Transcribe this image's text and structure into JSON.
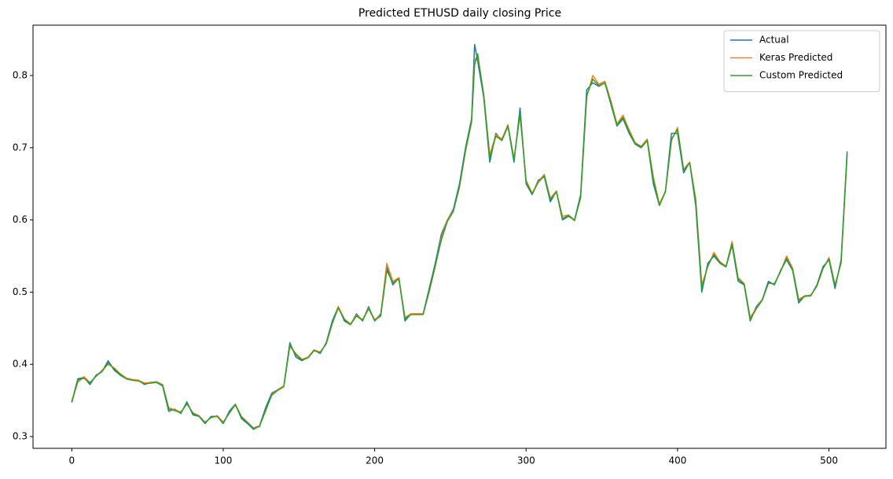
{
  "chart_data": {
    "type": "line",
    "title": "Predicted ETHUSD daily closing Price",
    "x": [
      0,
      4,
      8,
      12,
      16,
      20,
      24,
      28,
      32,
      36,
      40,
      44,
      48,
      52,
      56,
      60,
      64,
      68,
      72,
      76,
      80,
      84,
      88,
      92,
      96,
      100,
      104,
      108,
      112,
      116,
      120,
      124,
      128,
      132,
      136,
      140,
      144,
      148,
      152,
      156,
      160,
      164,
      168,
      172,
      176,
      180,
      184,
      188,
      192,
      196,
      200,
      204,
      208,
      212,
      216,
      220,
      224,
      228,
      232,
      236,
      240,
      244,
      248,
      252,
      256,
      260,
      264,
      266,
      268,
      272,
      276,
      280,
      284,
      288,
      292,
      296,
      300,
      304,
      308,
      312,
      316,
      320,
      324,
      328,
      332,
      336,
      340,
      344,
      348,
      352,
      356,
      360,
      364,
      368,
      372,
      376,
      380,
      384,
      388,
      392,
      396,
      400,
      404,
      408,
      412,
      416,
      420,
      424,
      428,
      432,
      436,
      440,
      444,
      448,
      452,
      456,
      460,
      464,
      468,
      472,
      476,
      480,
      484,
      488,
      492,
      496,
      500,
      504,
      508,
      512
    ],
    "series": [
      {
        "name": "Actual",
        "color": "#1f77b4",
        "values": [
          0.348,
          0.38,
          0.382,
          0.372,
          0.385,
          0.39,
          0.405,
          0.392,
          0.385,
          0.38,
          0.378,
          0.378,
          0.372,
          0.375,
          0.375,
          0.37,
          0.335,
          0.338,
          0.332,
          0.348,
          0.33,
          0.328,
          0.318,
          0.328,
          0.328,
          0.318,
          0.335,
          0.345,
          0.325,
          0.318,
          0.31,
          0.315,
          0.34,
          0.36,
          0.365,
          0.37,
          0.43,
          0.41,
          0.405,
          0.41,
          0.42,
          0.415,
          0.43,
          0.46,
          0.48,
          0.46,
          0.455,
          0.47,
          0.46,
          0.48,
          0.46,
          0.47,
          0.535,
          0.51,
          0.52,
          0.46,
          0.47,
          0.47,
          0.47,
          0.505,
          0.54,
          0.58,
          0.6,
          0.615,
          0.65,
          0.7,
          0.74,
          0.843,
          0.82,
          0.77,
          0.68,
          0.72,
          0.71,
          0.73,
          0.68,
          0.755,
          0.65,
          0.635,
          0.655,
          0.66,
          0.625,
          0.64,
          0.6,
          0.605,
          0.6,
          0.635,
          0.78,
          0.79,
          0.785,
          0.79,
          0.76,
          0.73,
          0.74,
          0.72,
          0.705,
          0.7,
          0.71,
          0.65,
          0.62,
          0.64,
          0.72,
          0.72,
          0.665,
          0.68,
          0.62,
          0.5,
          0.54,
          0.55,
          0.54,
          0.535,
          0.565,
          0.515,
          0.51,
          0.46,
          0.48,
          0.49,
          0.515,
          0.51,
          0.53,
          0.545,
          0.53,
          0.485,
          0.495,
          0.495,
          0.51,
          0.535,
          0.545,
          0.505,
          0.545,
          0.695
        ]
      },
      {
        "name": "Keras Predicted",
        "color": "#ff7f0e",
        "values": [
          0.35,
          0.375,
          0.383,
          0.375,
          0.383,
          0.392,
          0.4,
          0.395,
          0.387,
          0.381,
          0.379,
          0.378,
          0.374,
          0.375,
          0.376,
          0.372,
          0.34,
          0.337,
          0.334,
          0.345,
          0.333,
          0.329,
          0.32,
          0.326,
          0.329,
          0.32,
          0.332,
          0.345,
          0.328,
          0.32,
          0.312,
          0.315,
          0.335,
          0.358,
          0.365,
          0.37,
          0.425,
          0.415,
          0.407,
          0.41,
          0.42,
          0.417,
          0.428,
          0.456,
          0.48,
          0.463,
          0.456,
          0.468,
          0.462,
          0.478,
          0.462,
          0.468,
          0.54,
          0.515,
          0.52,
          0.465,
          0.47,
          0.47,
          0.47,
          0.5,
          0.535,
          0.575,
          0.6,
          0.613,
          0.645,
          0.695,
          0.735,
          0.82,
          0.828,
          0.775,
          0.69,
          0.718,
          0.712,
          0.732,
          0.685,
          0.745,
          0.655,
          0.637,
          0.653,
          0.663,
          0.63,
          0.64,
          0.605,
          0.607,
          0.6,
          0.63,
          0.77,
          0.8,
          0.788,
          0.792,
          0.765,
          0.733,
          0.745,
          0.725,
          0.707,
          0.702,
          0.712,
          0.66,
          0.622,
          0.64,
          0.71,
          0.728,
          0.67,
          0.68,
          0.63,
          0.51,
          0.535,
          0.555,
          0.542,
          0.536,
          0.57,
          0.52,
          0.512,
          0.465,
          0.478,
          0.49,
          0.512,
          0.512,
          0.528,
          0.55,
          0.533,
          0.49,
          0.495,
          0.496,
          0.508,
          0.532,
          0.548,
          0.51,
          0.54,
          0.69
        ]
      },
      {
        "name": "Custom Predicted",
        "color": "#2ca02c",
        "values": [
          0.347,
          0.378,
          0.381,
          0.374,
          0.384,
          0.39,
          0.402,
          0.394,
          0.386,
          0.38,
          0.378,
          0.377,
          0.373,
          0.374,
          0.375,
          0.371,
          0.338,
          0.336,
          0.333,
          0.346,
          0.332,
          0.328,
          0.319,
          0.327,
          0.328,
          0.319,
          0.333,
          0.344,
          0.327,
          0.319,
          0.311,
          0.314,
          0.337,
          0.357,
          0.364,
          0.369,
          0.427,
          0.413,
          0.406,
          0.409,
          0.419,
          0.416,
          0.429,
          0.457,
          0.478,
          0.462,
          0.455,
          0.467,
          0.461,
          0.477,
          0.461,
          0.467,
          0.53,
          0.513,
          0.518,
          0.463,
          0.469,
          0.469,
          0.469,
          0.502,
          0.537,
          0.572,
          0.598,
          0.612,
          0.647,
          0.697,
          0.737,
          0.815,
          0.83,
          0.772,
          0.685,
          0.716,
          0.71,
          0.73,
          0.683,
          0.748,
          0.652,
          0.636,
          0.652,
          0.661,
          0.628,
          0.639,
          0.602,
          0.606,
          0.599,
          0.632,
          0.772,
          0.795,
          0.786,
          0.79,
          0.762,
          0.731,
          0.742,
          0.722,
          0.706,
          0.701,
          0.71,
          0.655,
          0.62,
          0.639,
          0.712,
          0.725,
          0.668,
          0.679,
          0.625,
          0.505,
          0.537,
          0.552,
          0.541,
          0.535,
          0.567,
          0.518,
          0.511,
          0.462,
          0.477,
          0.489,
          0.513,
          0.511,
          0.529,
          0.547,
          0.531,
          0.488,
          0.494,
          0.495,
          0.509,
          0.533,
          0.546,
          0.508,
          0.542,
          0.692
        ]
      }
    ],
    "xlim": [
      -25.6,
      537.6
    ],
    "ylim": [
      0.2837,
      0.8697
    ],
    "xticks": [
      0,
      100,
      200,
      300,
      400,
      500
    ],
    "yticks": [
      0.3,
      0.4,
      0.5,
      0.6,
      0.7,
      0.8
    ],
    "legend": "upper right"
  }
}
